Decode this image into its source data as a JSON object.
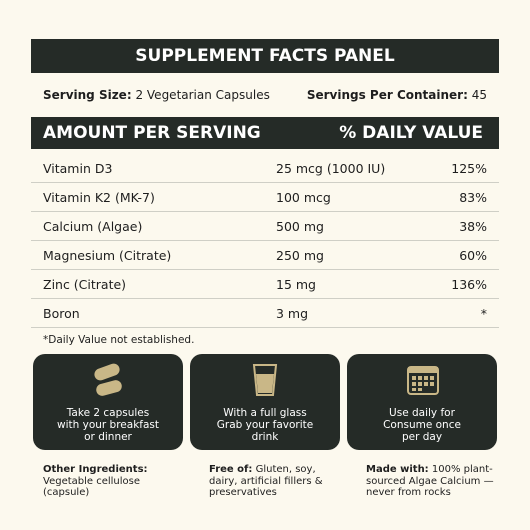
{
  "header": {
    "title": "SUPPLEMENT FACTS PANEL"
  },
  "serving": {
    "size_label": "Serving Size:",
    "size_value": "2 Vegetarian Capsules",
    "per_container_label": "Servings Per Container:",
    "per_container_value": "45"
  },
  "table": {
    "header": [
      "AMOUNT PER SERVING",
      "% DAILY VALUE"
    ],
    "rows": [
      [
        "Vitamin D3",
        "25 mcg (1000 IU)",
        "125%"
      ],
      [
        "Vitamin K2 (MK-7)",
        "100 mcg",
        "83%"
      ],
      [
        "Calcium (Algae)",
        "500 mg",
        "38%"
      ],
      [
        "Magnesium (Citrate)",
        "250 mg",
        "60%"
      ],
      [
        "Zinc (Citrate)",
        "15 mg",
        "136%"
      ],
      [
        "Boron",
        "3 mg",
        "*"
      ]
    ]
  },
  "footnote": "*Daily Value not established.",
  "cards": [
    {
      "lines": [
        "Take 2 capsules",
        "with your breakfast",
        "or dinner"
      ]
    },
    {
      "lines": [
        "With a full glass",
        "Grab your favorite",
        "drink"
      ]
    },
    {
      "lines": [
        "Use daily for",
        "Consume once",
        "per day"
      ]
    }
  ],
  "notes": [
    {
      "label": "Other Ingredients:",
      "text": "Vegetable cellulose (capsule)"
    },
    {
      "label": "Free of:",
      "text": "Gluten, soy, dairy, artificial fillers & preservatives"
    },
    {
      "label": "Made with:",
      "text": "100% plant-sourced Algae Calcium — never from rocks"
    }
  ]
}
